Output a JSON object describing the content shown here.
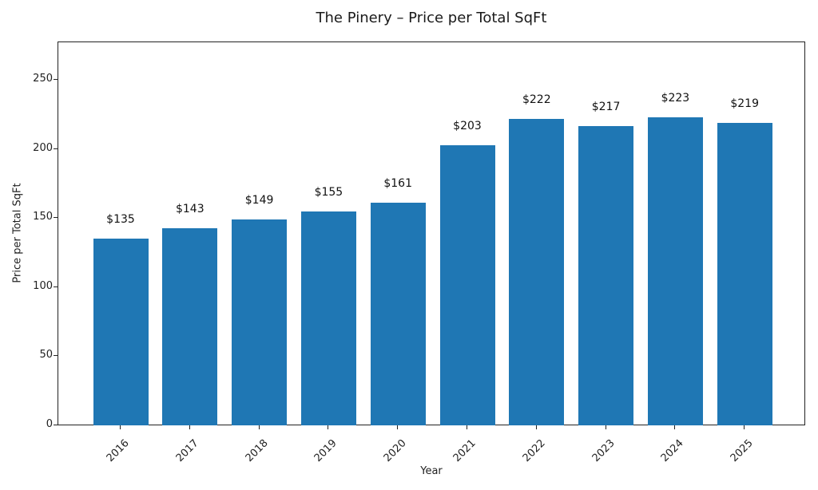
{
  "chart_data": {
    "type": "bar",
    "title": "The Pinery – Price per Total SqFt",
    "xlabel": "Year",
    "ylabel": "Price per Total SqFt",
    "categories": [
      "2016",
      "2017",
      "2018",
      "2019",
      "2020",
      "2021",
      "2022",
      "2023",
      "2024",
      "2025"
    ],
    "values": [
      135,
      143,
      149,
      155,
      161,
      203,
      222,
      217,
      223,
      219
    ],
    "data_labels": [
      "$135",
      "$143",
      "$149",
      "$155",
      "$161",
      "$203",
      "$222",
      "$217",
      "$223",
      "$219"
    ],
    "ylim": [
      0,
      278
    ],
    "yticks": [
      0,
      50,
      100,
      150,
      200,
      250
    ],
    "xtick_rotation": 45,
    "grid": false,
    "legend": null,
    "bar_color": "#1f77b4"
  }
}
